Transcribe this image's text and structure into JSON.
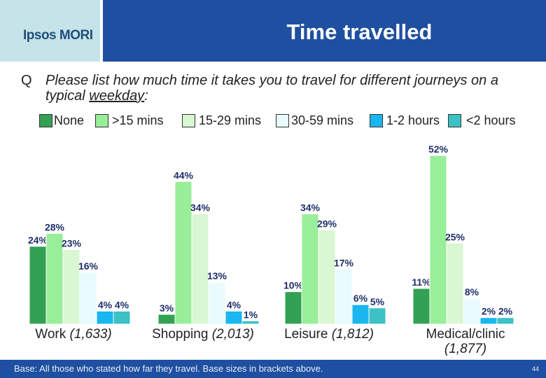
{
  "logo": "Ipsos MORI",
  "title": "Time travelled",
  "question": {
    "letter": "Q",
    "text_before": "Please list how much time it takes you to travel for different journeys on a typical ",
    "underlined": "weekday",
    "text_after": ":"
  },
  "footer": {
    "base_note": "Base: All those who stated how far they travel. Base sizes in brackets above.",
    "page_number": "44"
  },
  "colors": {
    "title_bar": "#1f4fa0",
    "logo_panel": "#c7e3ea"
  },
  "chart_data": {
    "type": "bar",
    "title": "",
    "xlabel": "",
    "ylabel": "",
    "ylim": [
      0,
      55
    ],
    "grid": false,
    "legend_position": "top",
    "categories": [
      "Work",
      "Shopping",
      "Leisure",
      "Medical/clinic"
    ],
    "category_labels": [
      {
        "name": "Work",
        "base": "(1,633)"
      },
      {
        "name": "Shopping",
        "base": "(2,013)"
      },
      {
        "name": "Leisure",
        "base": "(1,812)"
      },
      {
        "name": "Medical/clinic",
        "base": "(1,877)"
      }
    ],
    "series": [
      {
        "name": "None",
        "color": "#33a154",
        "values": [
          24,
          3,
          10,
          11
        ],
        "labels": [
          "24%",
          "3%",
          "10%",
          "11%"
        ]
      },
      {
        "name": ">15 mins",
        "color": "#99ee99",
        "values": [
          28,
          44,
          34,
          52
        ],
        "labels": [
          "28%",
          "44%",
          "34%",
          "52%"
        ]
      },
      {
        "name": "15-29 mins",
        "color": "#d9f7d2",
        "values": [
          23,
          34,
          29,
          25
        ],
        "labels": [
          "23%",
          "34%",
          "29%",
          "25%"
        ]
      },
      {
        "name": "30-59 mins",
        "color": "#e9fbfc",
        "values": [
          16,
          13,
          17,
          8
        ],
        "labels": [
          "16%",
          "13%",
          "17%",
          "8%"
        ]
      },
      {
        "name": "1-2 hours",
        "color": "#19b6ef",
        "values": [
          4,
          4,
          6,
          2
        ],
        "labels": [
          "4%",
          "4%",
          "6%",
          "2%"
        ]
      },
      {
        "name": "<2 hours",
        "color": "#3cc2c4",
        "values": [
          4,
          1,
          5,
          2
        ],
        "labels": [
          "4%",
          "1%",
          "5%",
          "2%"
        ]
      }
    ]
  }
}
